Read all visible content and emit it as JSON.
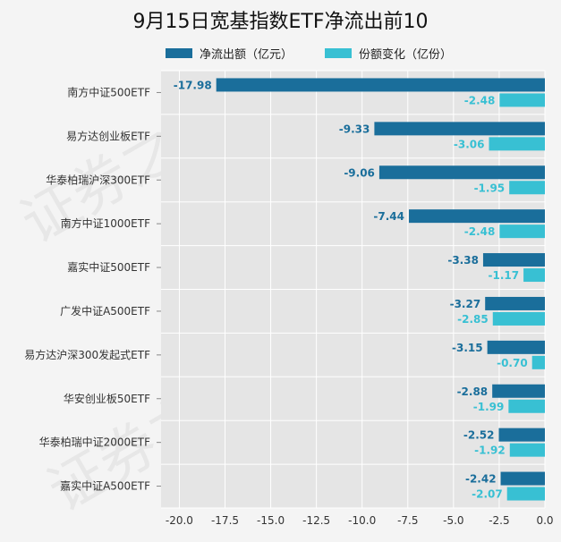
{
  "title": "9月15日宽基指数ETF净流出前10",
  "colors": {
    "net_outflow": "#1a6e9b",
    "share_change": "#38c0d3"
  },
  "chart_data": {
    "type": "bar",
    "orientation": "horizontal",
    "categories": [
      "南方中证500ETF",
      "易方达创业板ETF",
      "华泰柏瑞沪深300ETF",
      "南方中证1000ETF",
      "嘉实中证500ETF",
      "广发中证A500ETF",
      "易方达沪深300发起式ETF",
      "华安创业板50ETF",
      "华泰柏瑞中证2000ETF",
      "嘉实中证A500ETF"
    ],
    "series": [
      {
        "name": "净流出额（亿元）",
        "values": [
          -17.98,
          -9.33,
          -9.06,
          -7.44,
          -3.38,
          -3.27,
          -3.15,
          -2.88,
          -2.52,
          -2.42
        ]
      },
      {
        "name": "份额变化（亿份）",
        "values": [
          -2.48,
          -3.06,
          -1.95,
          -2.48,
          -1.17,
          -2.85,
          -0.7,
          -1.99,
          -1.92,
          -2.07
        ]
      }
    ],
    "value_labels": {
      "net": [
        "-17.98",
        "-9.33",
        "-9.06",
        "-7.44",
        "-3.38",
        "-3.27",
        "-3.15",
        "-2.88",
        "-2.52",
        "-2.42"
      ],
      "share": [
        "-2.48",
        "-3.06",
        "-1.95",
        "-2.48",
        "-1.17",
        "-2.85",
        "-0.70",
        "-1.99",
        "-1.92",
        "-2.07"
      ]
    },
    "xticks": [
      "-20.0",
      "-17.5",
      "-15.0",
      "-12.5",
      "-10.0",
      "-7.5",
      "-5.0",
      "-2.5",
      "0.0"
    ],
    "xlim": [
      -21,
      0
    ],
    "grid": true,
    "legend_position": "top"
  }
}
